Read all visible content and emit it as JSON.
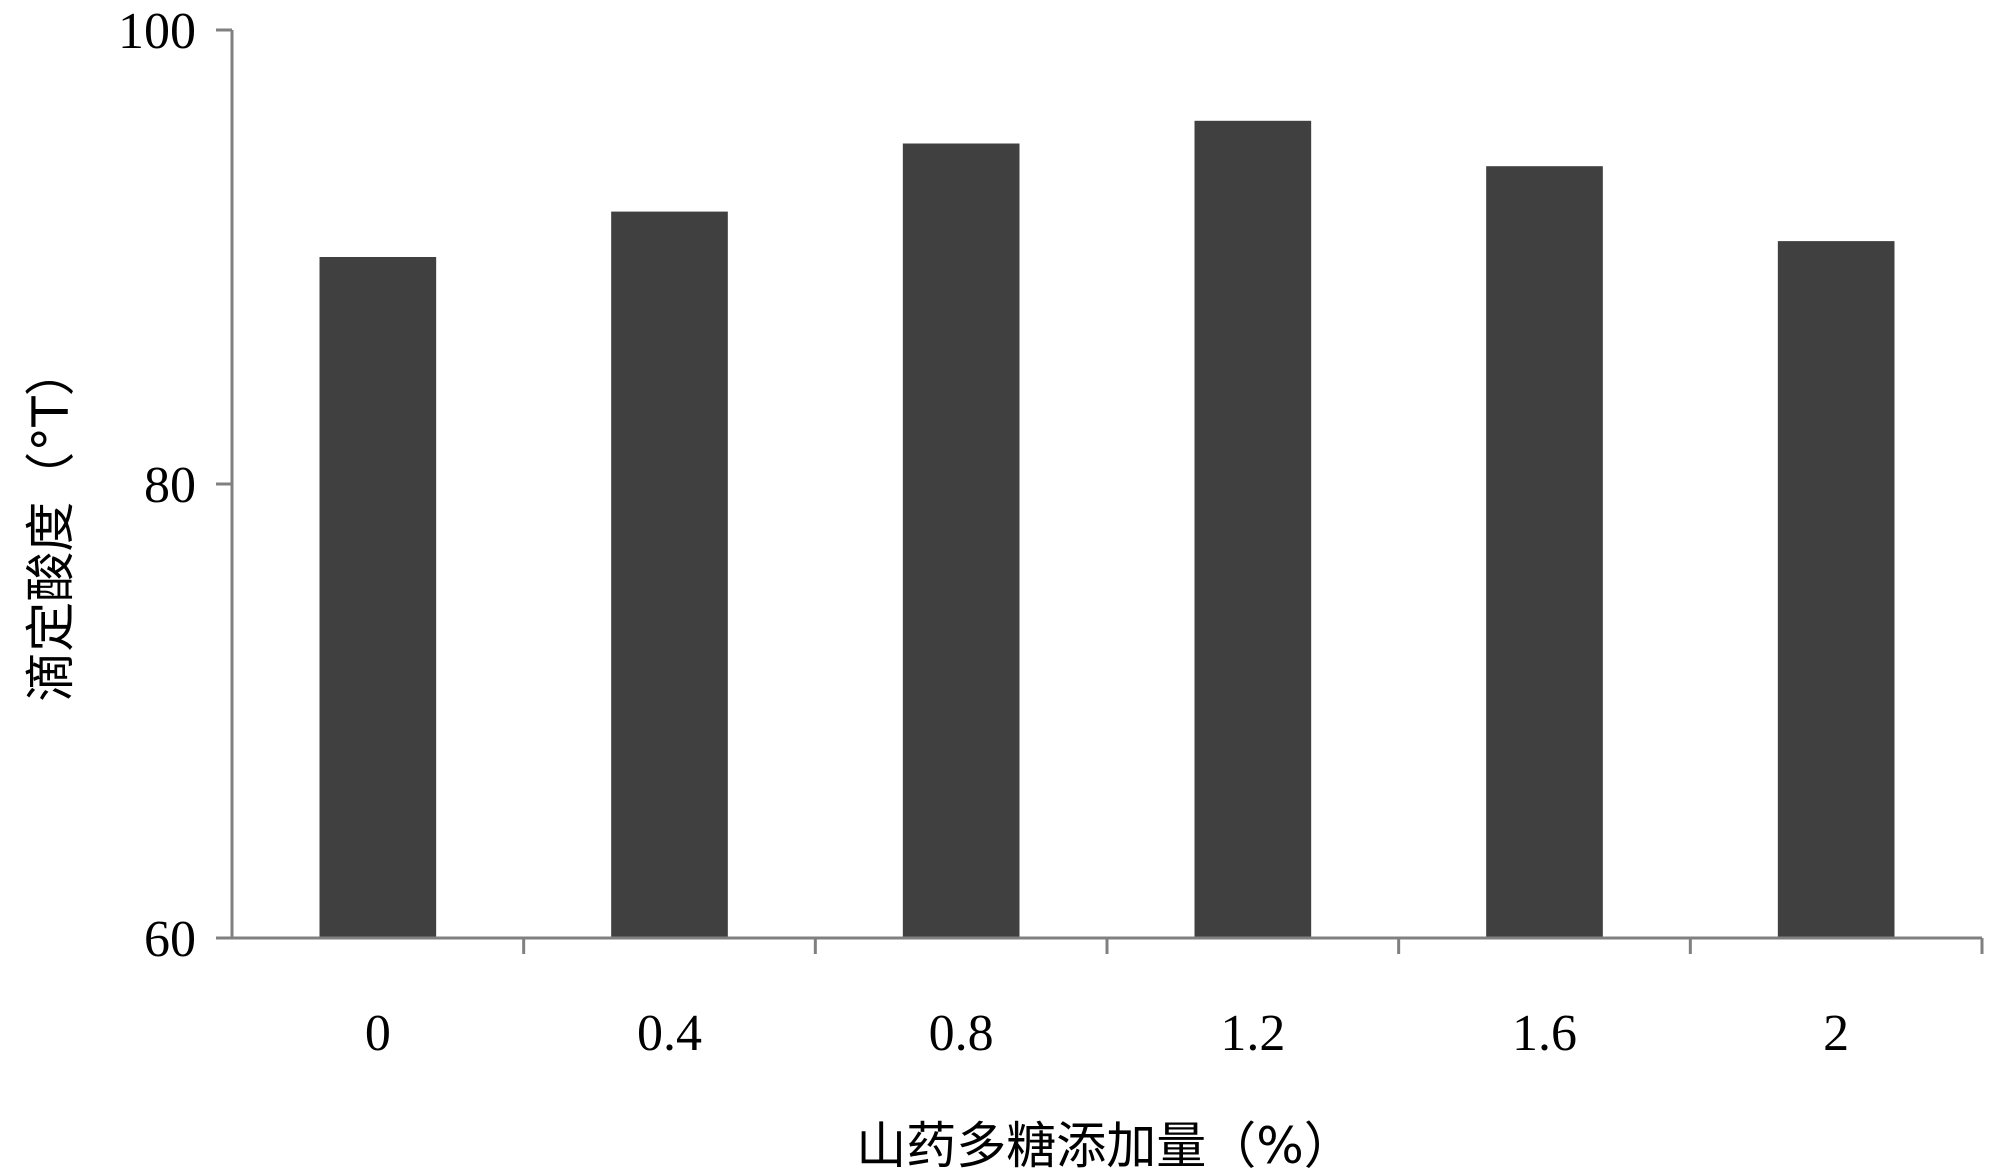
{
  "chart_data": {
    "type": "bar",
    "categories": [
      "0",
      "0.4",
      "0.8",
      "1.2",
      "1.6",
      "2"
    ],
    "values": [
      90,
      92,
      95,
      96,
      94,
      90.7
    ],
    "xlabel": "山药多糖添加量（%）",
    "ylabel": "滴定酸度（°T）",
    "ylim": [
      60,
      100
    ],
    "yticks": [
      "60",
      "80",
      "100"
    ],
    "bar_color": "#404040",
    "axis_color": "#808080",
    "grid": false
  }
}
